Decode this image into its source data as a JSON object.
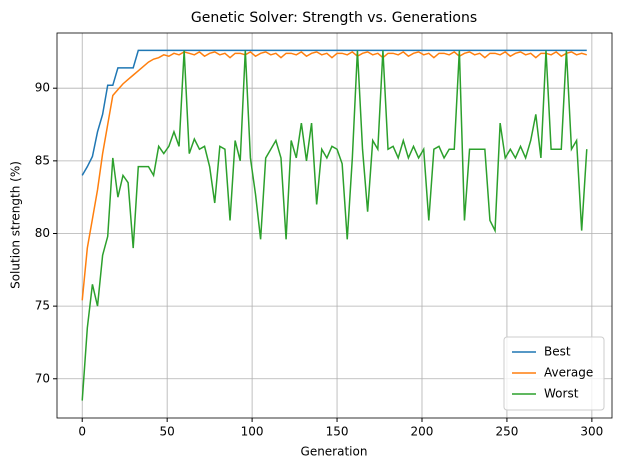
{
  "chart_data": {
    "type": "line",
    "title": "Genetic Solver: Strength vs. Generations",
    "x_label": "Generation",
    "y_label": "Solution strength (%)",
    "x": [
      0,
      3,
      6,
      9,
      12,
      15,
      18,
      21,
      24,
      27,
      30,
      33,
      36,
      39,
      42,
      45,
      48,
      51,
      54,
      57,
      60,
      63,
      66,
      69,
      72,
      75,
      78,
      81,
      84,
      87,
      90,
      93,
      96,
      99,
      102,
      105,
      108,
      111,
      114,
      117,
      120,
      123,
      126,
      129,
      132,
      135,
      138,
      141,
      144,
      147,
      150,
      153,
      156,
      159,
      162,
      165,
      168,
      171,
      174,
      177,
      180,
      183,
      186,
      189,
      192,
      195,
      198,
      201,
      204,
      207,
      210,
      213,
      216,
      219,
      222,
      225,
      228,
      231,
      234,
      237,
      240,
      243,
      246,
      249,
      252,
      255,
      258,
      261,
      264,
      267,
      270,
      273,
      276,
      279,
      282,
      285,
      288,
      291,
      294,
      297
    ],
    "series": [
      {
        "name": "Best",
        "color": "#1f77b4",
        "values": [
          84,
          84.6,
          85.3,
          87,
          88.2,
          90.2,
          90.2,
          91.4,
          91.4,
          91.4,
          91.4,
          92.6,
          92.6,
          92.6,
          92.6,
          92.6,
          92.6,
          92.6,
          92.6,
          92.6,
          92.6,
          92.6,
          92.6,
          92.6,
          92.6,
          92.6,
          92.6,
          92.6,
          92.6,
          92.6,
          92.6,
          92.6,
          92.6,
          92.6,
          92.6,
          92.6,
          92.6,
          92.6,
          92.6,
          92.6,
          92.6,
          92.6,
          92.6,
          92.6,
          92.6,
          92.6,
          92.6,
          92.6,
          92.6,
          92.6,
          92.6,
          92.6,
          92.6,
          92.6,
          92.6,
          92.6,
          92.6,
          92.6,
          92.6,
          92.6,
          92.6,
          92.6,
          92.6,
          92.6,
          92.6,
          92.6,
          92.6,
          92.6,
          92.6,
          92.6,
          92.6,
          92.6,
          92.6,
          92.6,
          92.6,
          92.6,
          92.6,
          92.6,
          92.6,
          92.6,
          92.6,
          92.6,
          92.6,
          92.6,
          92.6,
          92.6,
          92.6,
          92.6,
          92.6,
          92.6,
          92.6,
          92.6,
          92.6,
          92.6,
          92.6,
          92.6,
          92.6,
          92.6,
          92.6,
          92.6
        ]
      },
      {
        "name": "Average",
        "color": "#ff7f0e",
        "values": [
          75.4,
          79,
          81,
          83,
          85.5,
          87.5,
          89.5,
          89.9,
          90.3,
          90.6,
          90.9,
          91.2,
          91.5,
          91.8,
          92,
          92.1,
          92.3,
          92.2,
          92.4,
          92.3,
          92.5,
          92.4,
          92.3,
          92.5,
          92.2,
          92.4,
          92.5,
          92.3,
          92.4,
          92.1,
          92.4,
          92.4,
          92.3,
          92.5,
          92.2,
          92.4,
          92.5,
          92.3,
          92.4,
          92.1,
          92.4,
          92.4,
          92.3,
          92.5,
          92.2,
          92.4,
          92.5,
          92.3,
          92.4,
          92.1,
          92.4,
          92.4,
          92.3,
          92.5,
          92.2,
          92.4,
          92.5,
          92.3,
          92.4,
          92.1,
          92.4,
          92.4,
          92.3,
          92.5,
          92.2,
          92.4,
          92.5,
          92.3,
          92.4,
          92.1,
          92.4,
          92.4,
          92.3,
          92.5,
          92.2,
          92.4,
          92.5,
          92.3,
          92.4,
          92.1,
          92.4,
          92.4,
          92.3,
          92.5,
          92.2,
          92.4,
          92.5,
          92.3,
          92.4,
          92.1,
          92.4,
          92.4,
          92.3,
          92.5,
          92.2,
          92.4,
          92.5,
          92.3,
          92.4,
          92.3
        ]
      },
      {
        "name": "Worst",
        "color": "#2ca02c",
        "values": [
          68.5,
          73.5,
          76.5,
          75,
          78.5,
          79.8,
          85.2,
          82.5,
          84,
          83.5,
          79,
          84.6,
          84.6,
          84.6,
          84,
          86,
          85.5,
          86,
          87,
          86,
          92.6,
          85.5,
          86.5,
          85.8,
          86,
          84.6,
          82.1,
          86,
          85.8,
          80.9,
          86.4,
          85,
          92.6,
          85.2,
          82.7,
          79.6,
          85.2,
          85.8,
          86.4,
          85.2,
          79.6,
          86.4,
          85.2,
          87.6,
          85,
          87.6,
          82,
          85.8,
          85.2,
          86,
          85.8,
          84.8,
          79.6,
          85.2,
          92.6,
          85.8,
          81.5,
          86.4,
          85.8,
          92.6,
          85.8,
          86,
          85.2,
          86.4,
          85.2,
          86,
          85.2,
          85.8,
          80.9,
          85.8,
          86,
          85.2,
          85.8,
          85.8,
          92.6,
          80.9,
          85.8,
          85.8,
          85.8,
          85.8,
          80.9,
          80.2,
          87.6,
          85.2,
          85.8,
          85.2,
          86,
          85.2,
          86.4,
          88.2,
          85.2,
          92.6,
          85.8,
          85.8,
          85.8,
          92.6,
          85.8,
          86.4,
          80.2,
          85.8
        ]
      }
    ],
    "xlim": [
      -14.85,
      311.85
    ],
    "ylim": [
      67.3,
      93.8
    ],
    "xticks": [
      0,
      50,
      100,
      150,
      200,
      250,
      300
    ],
    "yticks": [
      70,
      75,
      80,
      85,
      90
    ],
    "grid": true,
    "legend": "lower right"
  }
}
